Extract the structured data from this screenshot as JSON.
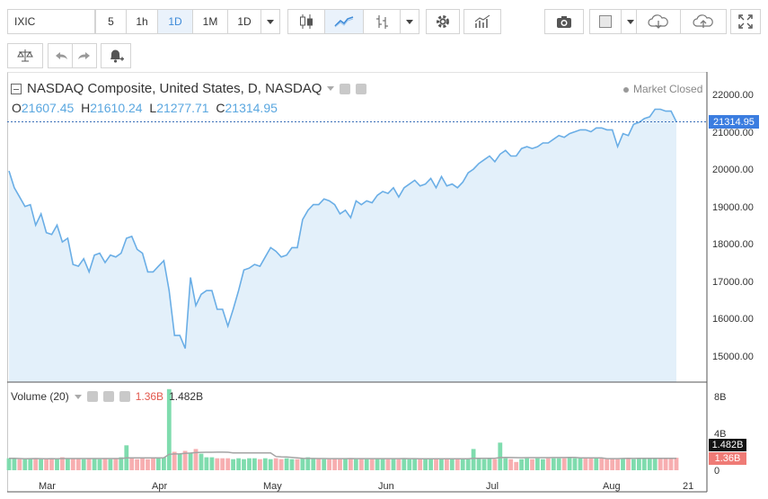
{
  "toolbar": {
    "symbol": "IXIC",
    "intervals": [
      "5",
      "1h",
      "1D",
      "1M",
      "1D"
    ],
    "selected_interval": "1D"
  },
  "legend": {
    "title": "NASDAQ Composite, United States, D, NASDAQ",
    "o_label": "O",
    "o_value": "21607.45",
    "h_label": "H",
    "h_value": "21610.24",
    "l_label": "L",
    "l_value": "21277.71",
    "c_label": "C",
    "c_value": "21314.95",
    "status": "Market Closed"
  },
  "price_tag": "21314.95",
  "volume": {
    "label": "Volume (20)",
    "value_red": "1.36B",
    "value_black": "1.482B",
    "tag_black": "1.482B",
    "tag_red": "1.36B",
    "axis": [
      "8B",
      "4B",
      "0"
    ]
  },
  "price_axis": [
    "22000.00",
    "21000.00",
    "20000.00",
    "19000.00",
    "18000.00",
    "17000.00",
    "16000.00",
    "15000.00"
  ],
  "x_axis": [
    "Mar",
    "Apr",
    "May",
    "Jun",
    "Jul",
    "Aug",
    "21"
  ],
  "colors": {
    "line": "#6aaee6",
    "fill": "#e3f0fa",
    "up_volume": "#7fdcae",
    "down_volume": "#f7aeb0",
    "ma_line": "#a4a4a4",
    "accent": "#3b7de0"
  },
  "chart_data": {
    "type": "area",
    "title": "NASDAQ Composite, United States, D, NASDAQ",
    "ylim": [
      14500,
      22500
    ],
    "x_ticks": [
      "Mar",
      "Apr",
      "May",
      "Jun",
      "Jul",
      "Aug",
      "21"
    ],
    "close": [
      20000,
      19550,
      19300,
      19050,
      19100,
      18550,
      18850,
      18350,
      18300,
      18550,
      18100,
      18200,
      17500,
      17450,
      17650,
      17300,
      17750,
      17800,
      17550,
      17750,
      17700,
      17800,
      18200,
      18250,
      17900,
      17800,
      17300,
      17300,
      17450,
      17600,
      16800,
      15600,
      15600,
      15250,
      17150,
      16400,
      16700,
      16800,
      16800,
      16300,
      16300,
      15850,
      16300,
      16800,
      17350,
      17400,
      17500,
      17450,
      17700,
      17950,
      17850,
      17700,
      17750,
      17950,
      17950,
      18700,
      18950,
      19100,
      19100,
      19250,
      19200,
      19100,
      18850,
      18950,
      18750,
      19200,
      19100,
      19200,
      19150,
      19350,
      19450,
      19400,
      19550,
      19300,
      19550,
      19650,
      19750,
      19600,
      19650,
      19800,
      19550,
      19850,
      19600,
      19650,
      19550,
      19700,
      19950,
      20050,
      20200,
      20300,
      20400,
      20250,
      20450,
      20550,
      20400,
      20400,
      20600,
      20650,
      20600,
      20650,
      20750,
      20750,
      20850,
      20950,
      20900,
      21000,
      21050,
      21100,
      21100,
      21050,
      21150,
      21150,
      21100,
      21100,
      20650,
      21000,
      20950,
      21250,
      21300,
      21400,
      21450,
      21650,
      21650,
      21600,
      21600,
      21314.95
    ],
    "volume_billions": [
      1.3,
      1.3,
      1.2,
      1.2,
      1.3,
      1.3,
      1.2,
      1.2,
      1.3,
      1.2,
      1.4,
      1.3,
      1.3,
      1.3,
      1.2,
      1.3,
      1.3,
      1.2,
      1.3,
      1.2,
      1.3,
      1.4,
      2.7,
      1.3,
      1.2,
      1.3,
      1.2,
      1.3,
      1.3,
      1.4,
      8.8,
      2.0,
      1.8,
      2.1,
      1.9,
      2.3,
      1.8,
      1.4,
      1.4,
      1.3,
      1.3,
      1.3,
      1.2,
      1.3,
      1.2,
      1.3,
      1.3,
      1.2,
      1.3,
      1.2,
      1.3,
      1.2,
      1.3,
      1.2,
      1.2,
      1.3,
      1.4,
      1.3,
      1.3,
      1.2,
      1.2,
      1.3,
      1.2,
      1.3,
      1.3,
      1.2,
      1.3,
      1.2,
      1.2,
      1.3,
      1.3,
      1.2,
      1.3,
      1.2,
      1.3,
      1.2,
      1.3,
      1.2,
      1.2,
      1.2,
      1.2,
      1.3,
      1.2,
      1.3,
      1.2,
      1.3,
      1.2,
      2.3,
      1.3,
      1.2,
      1.3,
      1.2,
      3.0,
      1.3,
      1.2,
      0.9,
      1.2,
      1.3,
      1.2,
      1.3,
      1.2,
      1.3,
      1.3,
      1.3,
      1.3,
      1.4,
      1.3,
      1.3,
      1.3,
      1.3,
      1.3,
      1.3,
      1.2,
      1.3,
      1.2,
      1.3,
      1.3,
      1.2,
      1.3,
      1.3,
      1.3,
      1.3,
      1.3,
      1.3,
      1.3,
      1.36
    ],
    "volume_up": [
      1,
      1,
      0,
      1,
      1,
      0,
      1,
      0,
      0,
      1,
      0,
      1,
      0,
      0,
      1,
      0,
      1,
      1,
      0,
      1,
      0,
      1,
      1,
      0,
      0,
      0,
      0,
      0,
      1,
      1,
      1,
      0,
      1,
      0,
      1,
      0,
      1,
      1,
      1,
      0,
      0,
      0,
      1,
      1,
      1,
      1,
      1,
      0,
      1,
      1,
      0,
      0,
      1,
      1,
      0,
      1,
      1,
      1,
      0,
      1,
      0,
      0,
      0,
      1,
      0,
      1,
      0,
      1,
      0,
      1,
      1,
      0,
      1,
      0,
      1,
      1,
      1,
      0,
      1,
      1,
      0,
      1,
      0,
      1,
      0,
      1,
      1,
      1,
      1,
      1,
      1,
      0,
      1,
      1,
      0,
      0,
      1,
      1,
      0,
      1,
      1,
      0,
      1,
      1,
      0,
      1,
      1,
      1,
      0,
      0,
      1,
      0,
      0,
      0,
      0,
      1,
      0,
      1,
      1,
      1,
      1,
      1,
      0,
      0,
      0,
      0
    ],
    "volume_ylim": [
      0,
      9
    ]
  }
}
